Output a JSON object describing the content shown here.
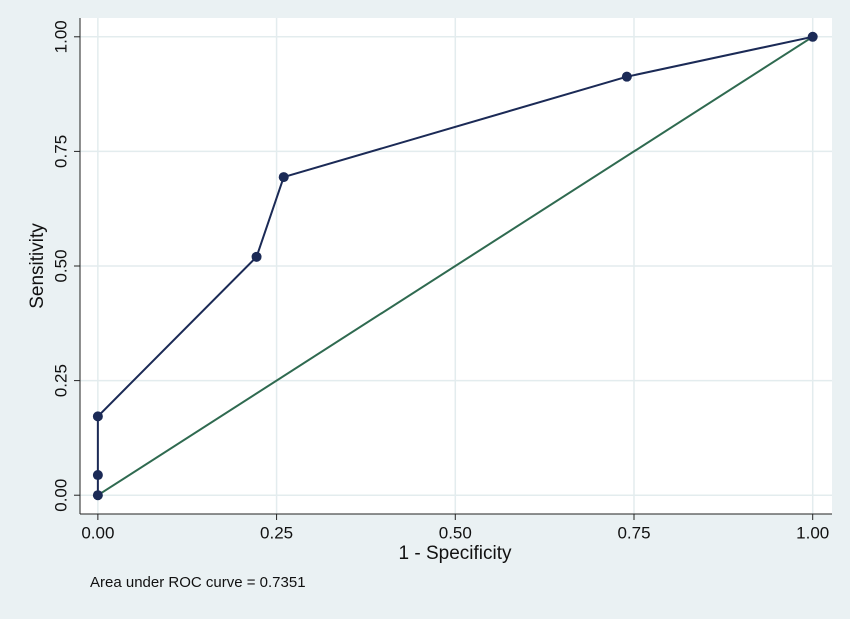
{
  "chart_data": {
    "type": "line",
    "x_label": "1 - Specificity",
    "y_label": "Sensitivity",
    "note": "Area under ROC curve = 0.7351",
    "series": [
      {
        "color": "#1b2a56",
        "markers": true,
        "x": [
          0,
          0,
          0,
          0.222,
          0.26,
          0.74,
          1
        ],
        "values": [
          0,
          0.044,
          0.172,
          0.52,
          0.694,
          0.913,
          1
        ]
      },
      {
        "color": "#2f6a50",
        "markers": false,
        "x": [
          0,
          1
        ],
        "values": [
          0,
          1
        ]
      }
    ],
    "xlim": [
      -0.025,
      1.027
    ],
    "ylim": [
      -0.041,
      1.041
    ],
    "xticks": [
      {
        "value": 0,
        "label": "0.00"
      },
      0.25,
      {
        "value": 0.5,
        "label": "0.50"
      },
      0.75,
      {
        "value": 1,
        "label": "1.00"
      }
    ],
    "yticks": [
      {
        "value": 0,
        "label": "0.00"
      },
      0.25,
      {
        "value": 0.5,
        "label": "0.50"
      },
      0.75,
      {
        "value": 1,
        "label": "1.00"
      }
    ],
    "grid": true
  }
}
